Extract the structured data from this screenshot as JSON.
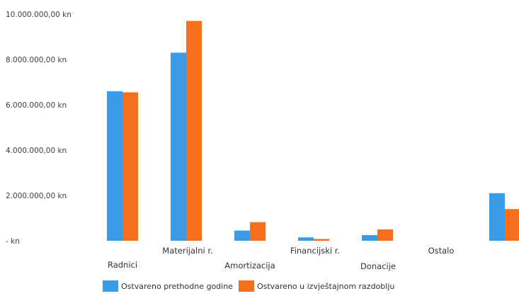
{
  "chart_data": {
    "type": "bar",
    "categories": [
      "Radnici",
      "Materijalni r.",
      "Amortizacija",
      "Financijski r.",
      "Donacije",
      "Ostalo",
      ""
    ],
    "series": [
      {
        "name": "Ostvareno prethodne godine",
        "color": "#3a9be6",
        "values": [
          6600000,
          8300000,
          450000,
          150000,
          250000,
          0,
          2100000
        ]
      },
      {
        "name": "Ostvareno u izvještajnom razdoblju",
        "color": "#f5701e",
        "values": [
          6550000,
          9700000,
          820000,
          80000,
          500000,
          0,
          1400000
        ]
      }
    ],
    "ylim": [
      0,
      10000000
    ],
    "yticks": [
      {
        "value": 0,
        "label": "-   kn"
      },
      {
        "value": 2000000,
        "label": "2.000.000,00 kn"
      },
      {
        "value": 4000000,
        "label": "4.000.000,00 kn"
      },
      {
        "value": 6000000,
        "label": "6.000.000,00 kn"
      },
      {
        "value": 8000000,
        "label": "8.000.000,00 kn"
      },
      {
        "value": 10000000,
        "label": "10.000.000,00 kn"
      }
    ],
    "grid": false,
    "legend_position": "bottom"
  }
}
